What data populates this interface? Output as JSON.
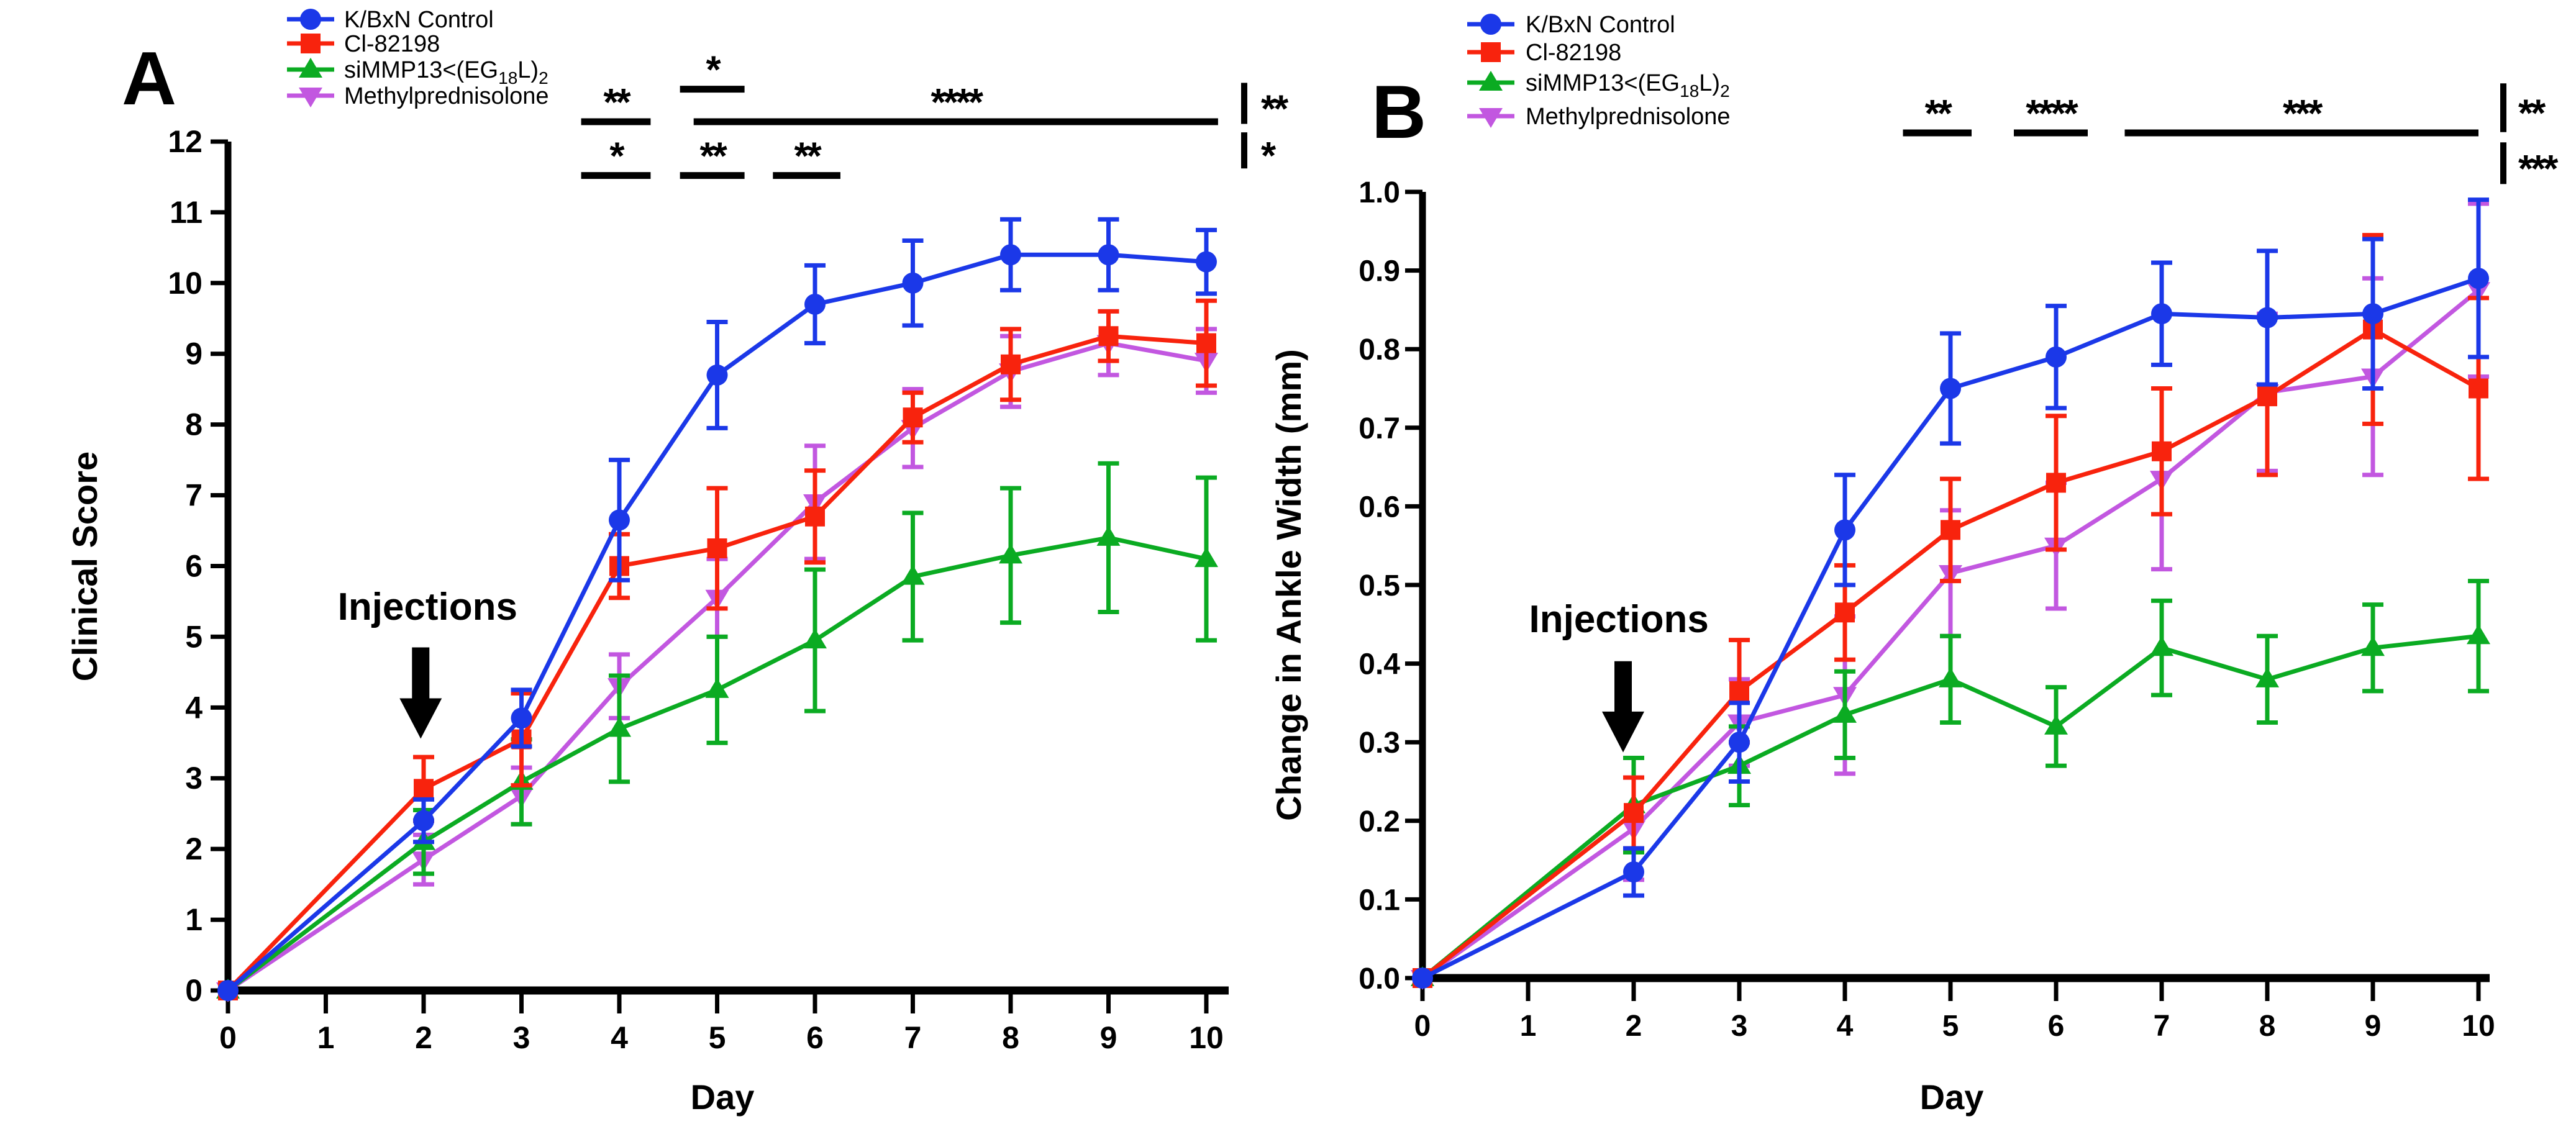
{
  "figure": {
    "background": "#FFFFFF",
    "panels": [
      {
        "label": "A"
      },
      {
        "label": "B"
      }
    ]
  },
  "chart_data": [
    {
      "panel_label": "A",
      "type": "line",
      "title": "",
      "xlabel": "Day",
      "ylabel": "Clinical Score",
      "xlim": [
        0,
        10
      ],
      "ylim": [
        0,
        12
      ],
      "grid": false,
      "legend_position": "top-left-above-plot",
      "x_ticks": [
        "0",
        "1",
        "2",
        "3",
        "4",
        "5",
        "6",
        "7",
        "8",
        "9",
        "10"
      ],
      "y_ticks": [
        "0",
        "1",
        "2",
        "3",
        "4",
        "5",
        "6",
        "7",
        "8",
        "9",
        "10",
        "11",
        "12"
      ],
      "x": [
        0,
        2,
        3,
        4,
        5,
        6,
        7,
        8,
        9,
        10
      ],
      "series": [
        {
          "name": "K/BxN Control",
          "color": "#1B38E8",
          "marker": "circle",
          "label_parts": [
            {
              "t": "K/BxN Control",
              "sub": false
            }
          ],
          "values": [
            0,
            2.4,
            3.85,
            6.65,
            8.7,
            9.7,
            10.0,
            10.4,
            10.4,
            10.3
          ],
          "errors": [
            0,
            0.3,
            0.4,
            0.85,
            0.75,
            0.55,
            0.6,
            0.5,
            0.5,
            0.45
          ]
        },
        {
          "name": "Cl-82198",
          "color": "#F8230D",
          "marker": "square",
          "label_parts": [
            {
              "t": "Cl-82198",
              "sub": false
            }
          ],
          "values": [
            0,
            2.85,
            3.55,
            6.0,
            6.25,
            6.7,
            8.1,
            8.85,
            9.25,
            9.15
          ],
          "errors": [
            0,
            0.45,
            0.65,
            0.45,
            0.85,
            0.65,
            0.35,
            0.5,
            0.35,
            0.6
          ]
        },
        {
          "name": "siMMP13<(EG18L)2",
          "color": "#0BAB22",
          "marker": "triangle-up",
          "label_parts": [
            {
              "t": "siMMP13<(EG",
              "sub": false
            },
            {
              "t": "18",
              "sub": true
            },
            {
              "t": "L)",
              "sub": false
            },
            {
              "t": "2",
              "sub": true
            }
          ],
          "values": [
            0,
            2.1,
            2.95,
            3.7,
            4.25,
            4.95,
            5.85,
            6.15,
            6.4,
            6.1
          ],
          "errors": [
            0,
            0.45,
            0.6,
            0.75,
            0.75,
            1.0,
            0.9,
            0.95,
            1.05,
            1.15
          ]
        },
        {
          "name": "Methylprednisolone",
          "color": "#C257E0",
          "marker": "triangle-down",
          "label_parts": [
            {
              "t": "Methylprednisolone",
              "sub": false
            }
          ],
          "values": [
            0,
            1.85,
            2.75,
            4.3,
            5.55,
            6.9,
            7.95,
            8.75,
            9.15,
            8.9
          ],
          "errors": [
            0,
            0.35,
            0.4,
            0.45,
            0.55,
            0.8,
            0.55,
            0.5,
            0.45,
            0.45
          ]
        }
      ],
      "injections": {
        "label": "Injections",
        "text_day": 2.04,
        "text_value": 5.24,
        "arrow_day": 1.97,
        "arrow_top": 4.85,
        "arrow_head": 4.13,
        "arrow_tip": 3.56
      },
      "significance": {
        "bars": [
          {
            "label": "*",
            "d1": 4.62,
            "d2": 5.28,
            "v": 12.74
          },
          {
            "label": "**",
            "d1": 3.61,
            "d2": 4.32,
            "v": 12.28
          },
          {
            "label": "****",
            "d1": 4.76,
            "d2": 10.12,
            "v": 12.28
          },
          {
            "label": "*",
            "d1": 3.61,
            "d2": 4.32,
            "v": 11.52
          },
          {
            "label": "**",
            "d1": 4.62,
            "d2": 5.28,
            "v": 11.52
          },
          {
            "label": "**",
            "d1": 5.57,
            "d2": 6.26,
            "v": 11.52
          }
        ],
        "brackets": [
          {
            "label": "**",
            "v1": 12.25,
            "v2": 12.83
          },
          {
            "label": "*",
            "v1": 11.62,
            "v2": 12.13
          }
        ]
      }
    },
    {
      "panel_label": "B",
      "type": "line",
      "title": "",
      "xlabel": "Day",
      "ylabel": "Change in Ankle Width (mm)",
      "xlim": [
        0,
        10
      ],
      "ylim": [
        0,
        1.0
      ],
      "grid": false,
      "legend_position": "top-left-above-plot",
      "x_ticks": [
        "0",
        "1",
        "2",
        "3",
        "4",
        "5",
        "6",
        "7",
        "8",
        "9",
        "10"
      ],
      "y_ticks": [
        "0.0",
        "0.1",
        "0.2",
        "0.3",
        "0.4",
        "0.5",
        "0.6",
        "0.7",
        "0.8",
        "0.9",
        "1.0"
      ],
      "x": [
        0,
        2,
        3,
        4,
        5,
        6,
        7,
        8,
        9,
        10
      ],
      "series": [
        {
          "name": "K/BxN Control",
          "color": "#1B38E8",
          "marker": "circle",
          "label_parts": [
            {
              "t": "K/BxN Control",
              "sub": false
            }
          ],
          "values": [
            0,
            0.135,
            0.3,
            0.57,
            0.75,
            0.79,
            0.845,
            0.84,
            0.845,
            0.89
          ],
          "errors": [
            0,
            0.03,
            0.05,
            0.07,
            0.07,
            0.065,
            0.065,
            0.085,
            0.095,
            0.1
          ]
        },
        {
          "name": "Cl-82198",
          "color": "#F8230D",
          "marker": "square",
          "label_parts": [
            {
              "t": "Cl-82198",
              "sub": false
            }
          ],
          "values": [
            0,
            0.21,
            0.365,
            0.465,
            0.57,
            0.63,
            0.67,
            0.74,
            0.825,
            0.75
          ],
          "errors": [
            0,
            0.045,
            0.065,
            0.06,
            0.065,
            0.085,
            0.08,
            0.1,
            0.12,
            0.115
          ]
        },
        {
          "name": "siMMP13<(EG18L)2",
          "color": "#0BAB22",
          "marker": "triangle-up",
          "label_parts": [
            {
              "t": "siMMP13<(EG",
              "sub": false
            },
            {
              "t": "18",
              "sub": true
            },
            {
              "t": "L)",
              "sub": false
            },
            {
              "t": "2",
              "sub": true
            }
          ],
          "values": [
            0,
            0.22,
            0.27,
            0.335,
            0.38,
            0.32,
            0.42,
            0.38,
            0.42,
            0.435
          ],
          "errors": [
            0,
            0.06,
            0.05,
            0.055,
            0.055,
            0.05,
            0.06,
            0.055,
            0.055,
            0.07
          ]
        },
        {
          "name": "Methylprednisolone",
          "color": "#C257E0",
          "marker": "triangle-down",
          "label_parts": [
            {
              "t": "Methylprednisolone",
              "sub": false
            }
          ],
          "values": [
            0,
            0.19,
            0.325,
            0.36,
            0.515,
            0.55,
            0.635,
            0.745,
            0.765,
            0.875
          ],
          "errors": [
            0,
            0.065,
            0.055,
            0.1,
            0.08,
            0.08,
            0.115,
            0.1,
            0.125,
            0.11
          ]
        }
      ],
      "injections": {
        "label": "Injections",
        "text_day": 1.86,
        "text_value": 0.44,
        "arrow_day": 1.9,
        "arrow_top": 0.403,
        "arrow_head": 0.339,
        "arrow_tip": 0.287
      },
      "significance": {
        "bars": [
          {
            "label": "**",
            "d1": 4.55,
            "d2": 5.2,
            "v": 1.075
          },
          {
            "label": "****",
            "d1": 5.6,
            "d2": 6.3,
            "v": 1.075
          },
          {
            "label": "***",
            "d1": 6.65,
            "d2": 10.0,
            "v": 1.075
          }
        ],
        "brackets": [
          {
            "label": "**",
            "v1": 1.076,
            "v2": 1.138
          },
          {
            "label": "***",
            "v1": 1.01,
            "v2": 1.063
          }
        ]
      }
    }
  ]
}
